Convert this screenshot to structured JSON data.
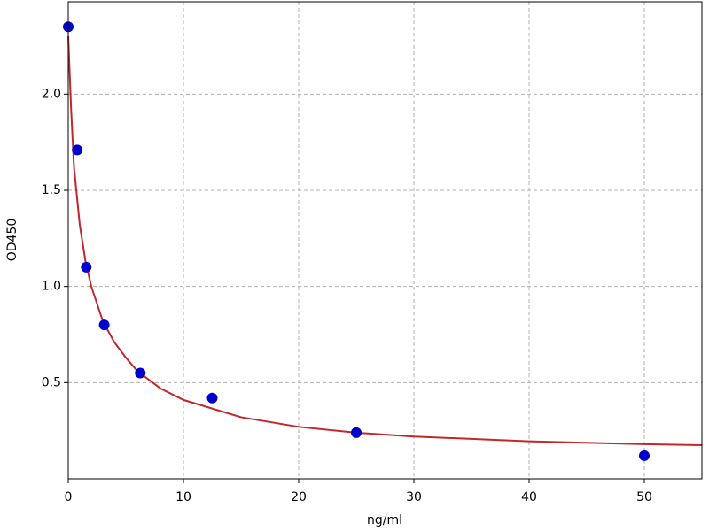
{
  "chart_data": {
    "type": "scatter",
    "xlabel": "ng/ml",
    "ylabel": "OD450",
    "xlim": [
      0,
      55
    ],
    "ylim": [
      0,
      2.48
    ],
    "xticks": [
      0,
      10,
      20,
      30,
      40,
      50
    ],
    "yticks": [
      0.5,
      {
        "value": 1,
        "label": "1.0"
      },
      1.5,
      {
        "value": 2,
        "label": "2.0"
      }
    ],
    "grid": true,
    "series": [
      {
        "kind": "scatter",
        "color": "#0000cc",
        "x": [
          0,
          0.78,
          1.56,
          3.125,
          6.25,
          12.5,
          25,
          50
        ],
        "values": [
          2.35,
          1.71,
          1.1,
          0.8,
          0.55,
          0.42,
          0.24,
          0.12
        ]
      },
      {
        "kind": "line",
        "color": "#c0282d",
        "x": [
          0,
          0.25,
          0.5,
          1,
          1.5,
          2,
          3,
          4,
          5,
          6,
          8,
          10,
          15,
          20,
          25,
          30,
          40,
          50,
          55
        ],
        "values": [
          2.3,
          1.92,
          1.62,
          1.32,
          1.13,
          1.0,
          0.82,
          0.71,
          0.63,
          0.56,
          0.47,
          0.41,
          0.32,
          0.27,
          0.24,
          0.22,
          0.195,
          0.18,
          0.175
        ]
      }
    ]
  }
}
